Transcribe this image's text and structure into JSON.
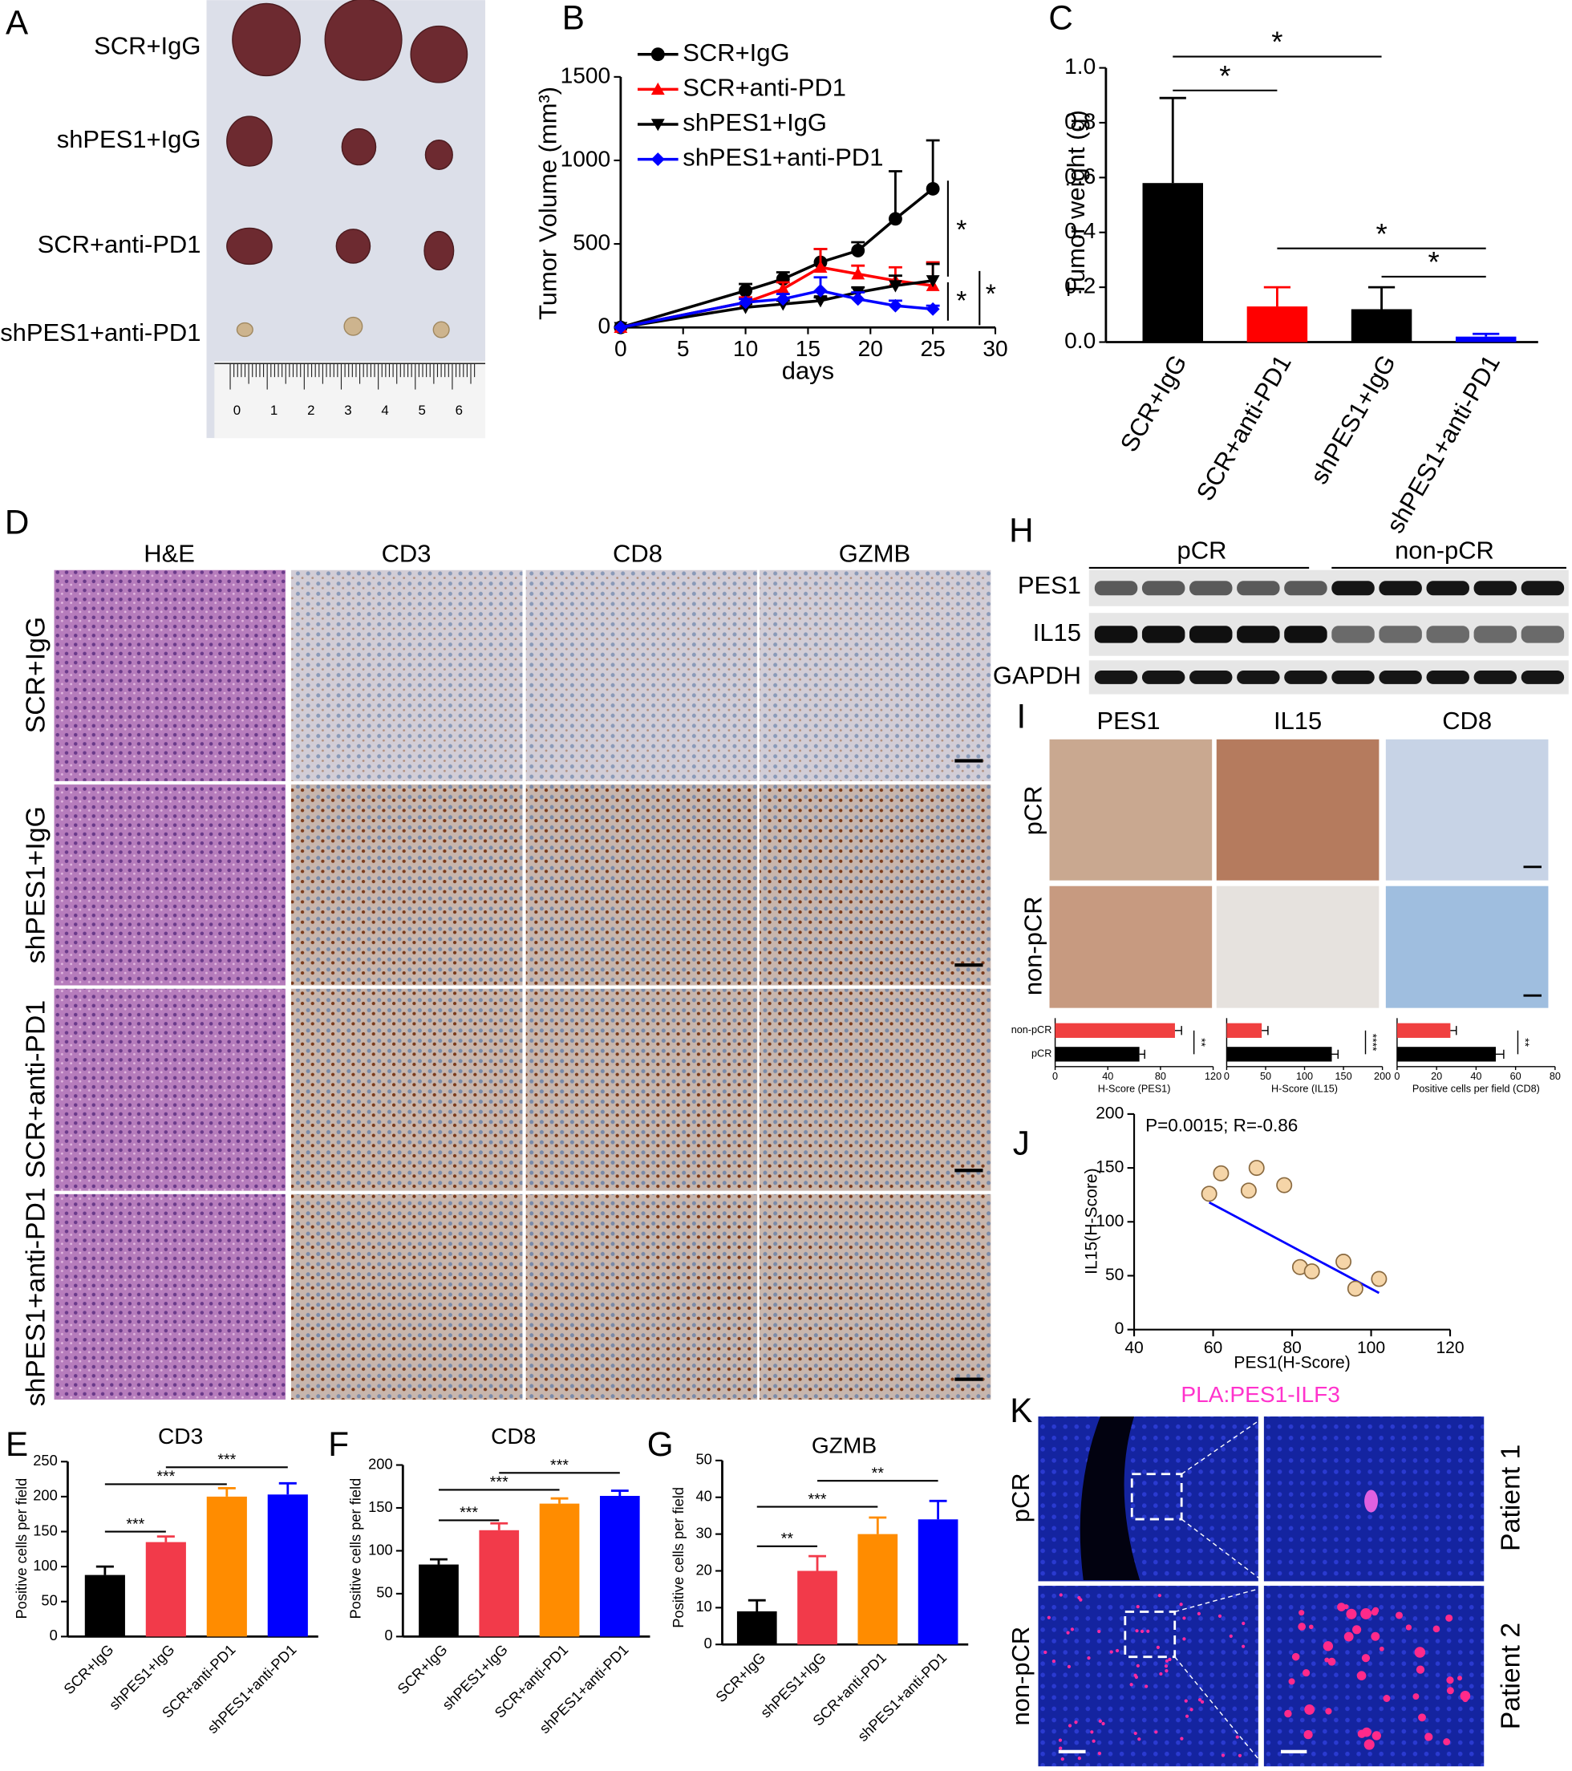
{
  "figure": {
    "panels": [
      "A",
      "B",
      "C",
      "D",
      "E",
      "F",
      "G",
      "H",
      "I",
      "J",
      "K"
    ],
    "A": {
      "rows": [
        "SCR+IgG",
        "shPES1+IgG",
        "SCR+anti-PD1",
        "shPES1+anti-PD1"
      ],
      "ruler": [
        "0",
        "1",
        "2",
        "3",
        "4",
        "5",
        "6"
      ]
    },
    "D": {
      "columns": [
        "H&E",
        "CD3",
        "CD8",
        "GZMB"
      ],
      "rows": [
        "SCR+IgG",
        "shPES1+IgG",
        "SCR+anti-PD1",
        "shPES1+anti-PD1"
      ]
    },
    "H": {
      "groups": [
        "pCR",
        "non-pCR"
      ],
      "rows": [
        "PES1",
        "IL15",
        "GAPDH"
      ]
    },
    "I": {
      "columns": [
        "PES1",
        "IL15",
        "CD8"
      ],
      "rows": [
        "pCR",
        "non-pCR"
      ]
    },
    "K": {
      "title": "PLA:PES1-ILF3",
      "rows": [
        "pCR",
        "non-pCR"
      ],
      "patients": [
        "Patient 1",
        "Patient 2"
      ]
    }
  },
  "chart_data": [
    {
      "type": "line",
      "xlabel": "days",
      "ylabel": "Tumor Volume (mm³)",
      "x": [
        0,
        10,
        13,
        16,
        19,
        22,
        25
      ],
      "xlim": [
        0,
        30
      ],
      "xticks": [
        0,
        5,
        10,
        15,
        20,
        25,
        30
      ],
      "ylim": [
        0,
        1500
      ],
      "yticks": [
        0,
        500,
        1000,
        1500
      ],
      "legend": "upper left",
      "series": [
        {
          "name": "SCR+IgG",
          "color": "#000000",
          "marker": "circle",
          "values": [
            0,
            220,
            290,
            390,
            460,
            650,
            830
          ],
          "errors": [
            0,
            40,
            40,
            80,
            50,
            285,
            290
          ]
        },
        {
          "name": "SCR+anti-PD1",
          "color": "#ff0000",
          "marker": "triangle-up",
          "values": [
            0,
            150,
            230,
            360,
            320,
            280,
            250
          ],
          "errors": [
            0,
            30,
            40,
            110,
            50,
            80,
            140
          ]
        },
        {
          "name": "shPES1+IgG",
          "color": "#000000",
          "marker": "triangle-down",
          "values": [
            0,
            120,
            140,
            160,
            210,
            250,
            280
          ],
          "errors": [
            0,
            20,
            20,
            20,
            30,
            60,
            100
          ]
        },
        {
          "name": "shPES1+anti-PD1",
          "color": "#0000ff",
          "marker": "diamond",
          "values": [
            0,
            150,
            170,
            220,
            170,
            130,
            110
          ],
          "errors": [
            0,
            20,
            30,
            80,
            40,
            30,
            20
          ]
        }
      ],
      "annotations": [
        "*",
        "*",
        "*"
      ]
    },
    {
      "type": "bar",
      "ylabel": "Tumor weight (g)",
      "categories": [
        "SCR+IgG",
        "SCR+anti-PD1",
        "shPES1+IgG",
        "shPES1+anti-PD1"
      ],
      "values": [
        0.58,
        0.13,
        0.12,
        0.02
      ],
      "errors": [
        0.31,
        0.07,
        0.08,
        0.01
      ],
      "colors": [
        "#000000",
        "#ff0000",
        "#000000",
        "#0000ff"
      ],
      "ylim": [
        0,
        1
      ],
      "yticks": [
        {
          "value": 0,
          "label": "0.0"
        },
        0.2,
        0.4,
        0.6,
        0.8,
        {
          "value": 1,
          "label": "1.0"
        }
      ],
      "annotations": [
        "*",
        "*",
        "*",
        "*"
      ]
    },
    {
      "type": "bar",
      "title": "CD3",
      "ylabel": "Positive cells per field",
      "categories": [
        "SCR+IgG",
        "shPES1+IgG",
        "SCR+anti-PD1",
        "shPES1+anti-PD1"
      ],
      "values": [
        88,
        135,
        200,
        203
      ],
      "errors": [
        12,
        8,
        12,
        16
      ],
      "colors": [
        "#000000",
        "#f23a4a",
        "#ff8c00",
        "#0000ff"
      ],
      "ylim": [
        0,
        250
      ],
      "yticks": [
        0,
        50,
        100,
        150,
        200,
        250
      ],
      "annotations": [
        "***",
        "***",
        "***"
      ]
    },
    {
      "type": "bar",
      "title": "CD8",
      "ylabel": "Positive cells per field",
      "categories": [
        "SCR+IgG",
        "shPES1+IgG",
        "SCR+anti-PD1",
        "shPES1+anti-PD1"
      ],
      "values": [
        84,
        124,
        155,
        164
      ],
      "errors": [
        6,
        8,
        6,
        6
      ],
      "colors": [
        "#000000",
        "#f23a4a",
        "#ff8c00",
        "#0000ff"
      ],
      "ylim": [
        0,
        200
      ],
      "yticks": [
        0,
        50,
        100,
        150,
        200
      ],
      "annotations": [
        "***",
        "***",
        "***"
      ]
    },
    {
      "type": "bar",
      "title": "GZMB",
      "ylabel": "Positive cells per field",
      "categories": [
        "SCR+IgG",
        "shPES1+IgG",
        "SCR+anti-PD1",
        "shPES1+anti-PD1"
      ],
      "values": [
        9,
        20,
        30,
        34
      ],
      "errors": [
        3,
        4,
        4.5,
        5
      ],
      "colors": [
        "#000000",
        "#f23a4a",
        "#ff8c00",
        "#0000ff"
      ],
      "ylim": [
        0,
        50
      ],
      "yticks": [
        0,
        10,
        20,
        30,
        40,
        50
      ],
      "annotations": [
        "**",
        "***",
        "**"
      ]
    },
    {
      "type": "hbar",
      "xlabel": "H-Score (PES1)",
      "categories": [
        "non-pCR",
        "pCR"
      ],
      "values": [
        91,
        64
      ],
      "errors": [
        5,
        4
      ],
      "colors": [
        "#f04040",
        "#000000"
      ],
      "xlim": [
        0,
        120
      ],
      "xticks": [
        0,
        40,
        80,
        120
      ],
      "annotations": [
        "**"
      ]
    },
    {
      "type": "hbar",
      "xlabel": "H-Score (IL15)",
      "values": [
        45,
        135
      ],
      "errors": [
        8,
        8
      ],
      "colors": [
        "#f04040",
        "#000000"
      ],
      "xlim": [
        0,
        200
      ],
      "xticks": [
        0,
        50,
        100,
        150,
        200
      ],
      "annotations": [
        "****"
      ]
    },
    {
      "type": "hbar",
      "xlabel": "Positive cells per field (CD8)",
      "values": [
        27,
        50
      ],
      "errors": [
        3,
        4
      ],
      "colors": [
        "#f04040",
        "#000000"
      ],
      "xlim": [
        0,
        80
      ],
      "xticks": [
        0,
        20,
        40,
        60,
        80
      ],
      "annotations": [
        "**"
      ]
    },
    {
      "type": "scatter",
      "xlabel": "PES1(H-Score)",
      "ylabel": "IL15(H-Score)",
      "annotation": "P=0.0015; R=-0.86",
      "x": [
        59,
        62,
        69,
        71,
        78,
        82,
        85,
        93,
        96,
        102
      ],
      "values": [
        126,
        145,
        129,
        150,
        134,
        58,
        54,
        63,
        38,
        47
      ],
      "color": "#f5d5a8",
      "xlim": [
        40,
        120
      ],
      "xticks": [
        40,
        60,
        80,
        100,
        120
      ],
      "ylim": [
        0,
        200
      ],
      "yticks": [
        0,
        50,
        100,
        150,
        200
      ],
      "fit": {
        "x": [
          59,
          102
        ],
        "values": [
          118,
          34
        ],
        "color": "#0000ff"
      }
    }
  ]
}
